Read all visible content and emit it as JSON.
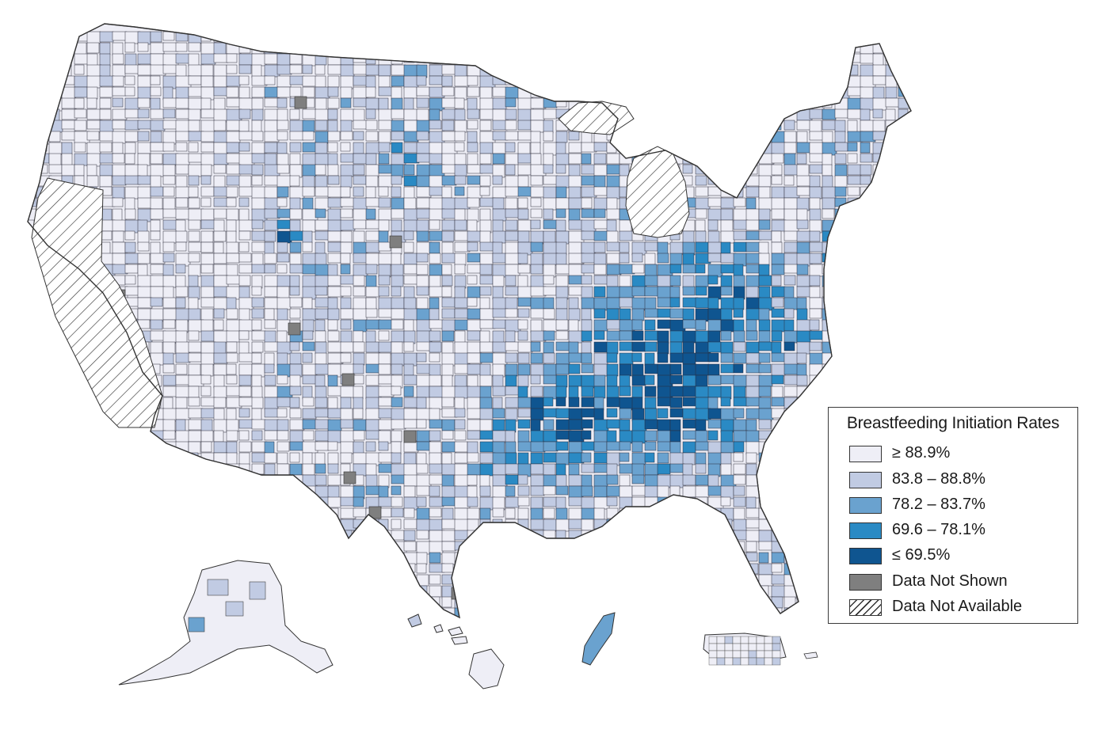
{
  "legend": {
    "title": "Breastfeeding Initiation Rates",
    "items": [
      {
        "label": "≥ 88.9%",
        "color": "#eeeef6"
      },
      {
        "label": "83.8 – 88.8%",
        "color": "#c1cbe3"
      },
      {
        "label": "78.2 – 83.7%",
        "color": "#6aa2cf"
      },
      {
        "label": "69.6 – 78.1%",
        "color": "#2a8ac4"
      },
      {
        "label": "≤ 69.5%",
        "color": "#0f5590"
      },
      {
        "label": "Data Not Shown",
        "color": "#7f7f7f"
      },
      {
        "label": "Data Not Available",
        "color": "hatch"
      }
    ]
  },
  "map": {
    "regions": [
      "contiguous-us",
      "alaska",
      "hawaii",
      "guam",
      "puerto-rico"
    ],
    "hatched_states": [
      "california",
      "michigan"
    ]
  }
}
